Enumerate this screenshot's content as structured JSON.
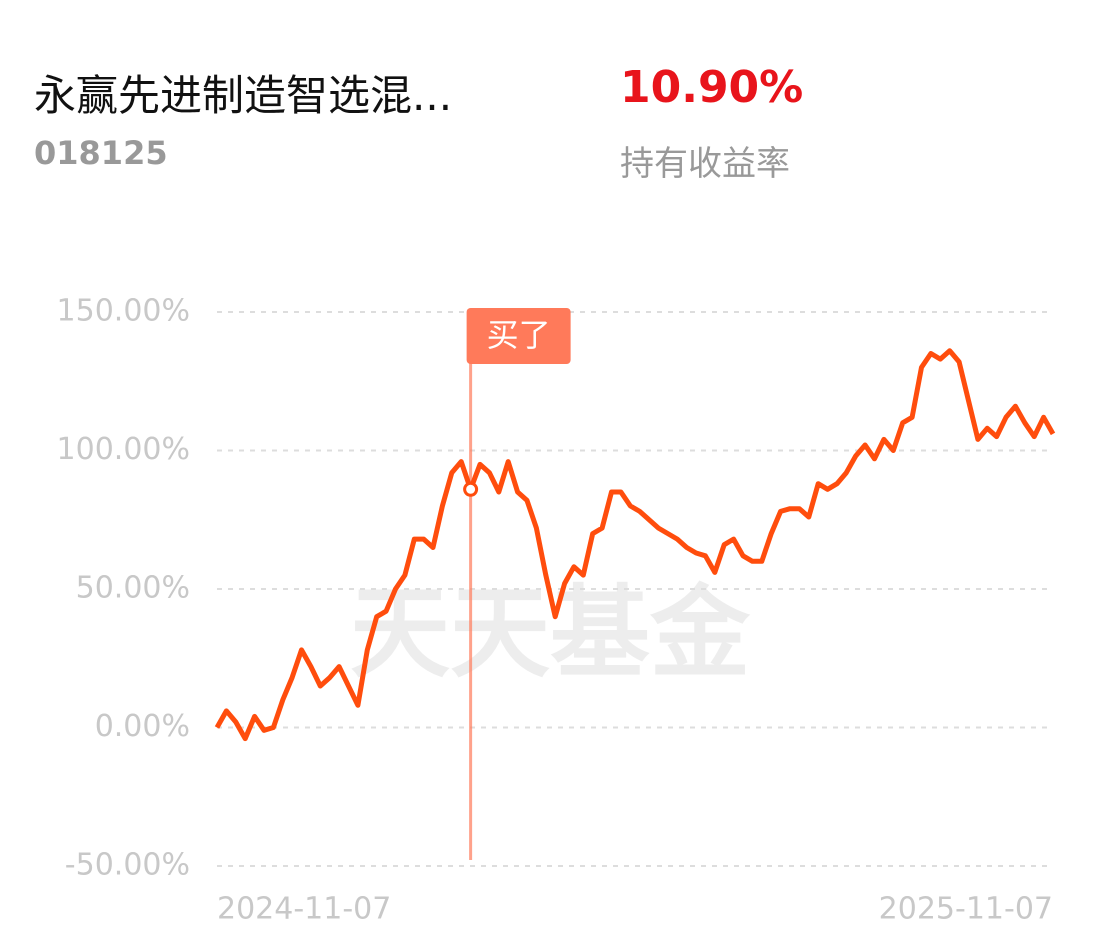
{
  "header": {
    "title": "永赢先进制造智选混...",
    "code": "018125",
    "return_value": "10.90%",
    "return_label": "持有收益率"
  },
  "chart_data": {
    "type": "line",
    "watermark": "天天基金",
    "annotation": "买了",
    "color": "#ff4d0d",
    "grid": true,
    "categories": [
      "2024-11-07",
      null,
      null,
      null,
      null,
      null,
      null,
      null,
      null,
      null,
      null,
      null,
      null,
      null,
      null,
      null,
      null,
      null,
      null,
      null,
      null,
      null,
      null,
      null,
      null,
      null,
      null,
      null,
      null,
      null,
      null,
      null,
      null,
      null,
      null,
      null,
      null,
      null,
      null,
      null,
      null,
      null,
      null,
      null,
      null,
      null,
      null,
      null,
      null,
      null,
      null,
      null,
      null,
      null,
      null,
      null,
      null,
      null,
      null,
      null,
      null,
      null,
      null,
      null,
      null,
      null,
      null,
      null,
      null,
      null,
      null,
      null,
      null,
      null,
      null,
      null,
      null,
      null,
      null,
      null,
      null,
      null,
      null,
      null,
      null,
      null,
      null,
      null,
      null,
      "2025-11-07"
    ],
    "values": [
      0,
      6,
      2,
      -4,
      4,
      -1,
      0,
      10,
      18,
      28,
      22,
      15,
      18,
      22,
      15,
      8,
      28,
      40,
      42,
      50,
      55,
      68,
      68,
      65,
      80,
      92,
      96,
      86,
      95,
      92,
      85,
      96,
      85,
      82,
      72,
      55,
      40,
      52,
      58,
      55,
      70,
      72,
      85,
      85,
      80,
      78,
      75,
      72,
      70,
      68,
      65,
      63,
      62,
      56,
      66,
      68,
      62,
      60,
      60,
      70,
      78,
      79,
      79,
      76,
      88,
      86,
      88,
      92,
      98,
      102,
      97,
      104,
      100,
      110,
      112,
      130,
      135,
      133,
      136,
      132,
      118,
      104,
      108,
      105,
      112,
      116,
      110,
      105,
      112,
      106
    ],
    "ylim": [
      -50,
      150
    ],
    "yticks": [
      {
        "value": -50,
        "label": "-50.00%"
      },
      {
        "value": 0,
        "label": "0.00%"
      },
      {
        "value": 50,
        "label": "50.00%"
      },
      {
        "value": 100,
        "label": "100.00%"
      },
      {
        "value": 150,
        "label": "150.00%"
      }
    ]
  }
}
